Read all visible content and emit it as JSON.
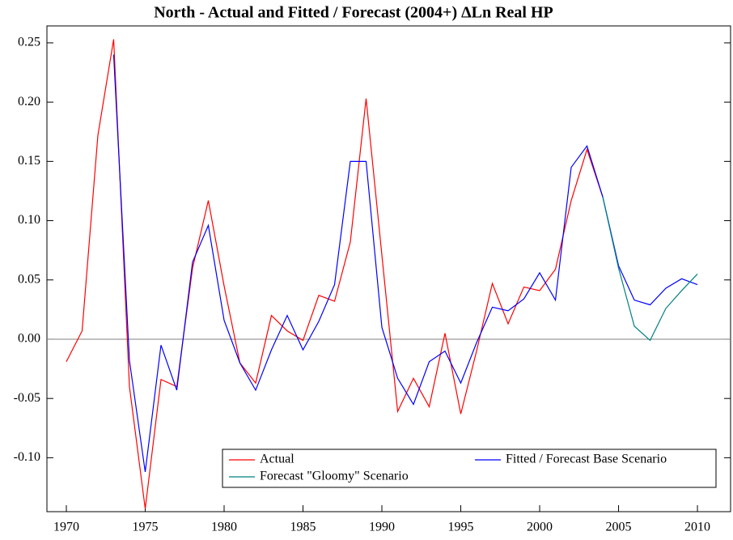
{
  "chart_data": {
    "type": "line",
    "title": "North - Actual and Fitted / Forecast (2004+) ΔLn Real HP",
    "x": [
      1970,
      1971,
      1972,
      1973,
      1974,
      1975,
      1976,
      1977,
      1978,
      1979,
      1980,
      1981,
      1982,
      1983,
      1984,
      1985,
      1986,
      1987,
      1988,
      1989,
      1990,
      1991,
      1992,
      1993,
      1994,
      1995,
      1996,
      1997,
      1998,
      1999,
      2000,
      2001,
      2002,
      2003,
      2004,
      2005,
      2006,
      2007,
      2008,
      2009,
      2010
    ],
    "series": [
      {
        "name": "Actual",
        "color": "#ff0000",
        "values": [
          -0.019,
          0.007,
          0.172,
          0.253,
          -0.04,
          -0.143,
          -0.034,
          -0.04,
          0.06,
          0.117,
          0.045,
          -0.02,
          -0.037,
          0.02,
          0.007,
          -0.001,
          0.037,
          0.032,
          0.082,
          0.203,
          0.071,
          -0.061,
          -0.033,
          -0.057,
          0.005,
          -0.063,
          -0.01,
          0.047,
          0.013,
          0.044,
          0.041,
          0.059,
          0.117,
          0.16,
          0.12,
          null,
          null,
          null,
          null,
          null,
          null
        ]
      },
      {
        "name": "Fitted / Forecast Base Scenario",
        "color": "#0000ff",
        "values": [
          null,
          null,
          null,
          0.24,
          -0.018,
          -0.112,
          -0.005,
          -0.043,
          0.065,
          0.096,
          0.016,
          -0.02,
          -0.043,
          -0.009,
          0.02,
          -0.009,
          0.015,
          0.046,
          0.15,
          0.15,
          0.01,
          -0.033,
          -0.055,
          -0.019,
          -0.01,
          -0.037,
          -0.003,
          0.027,
          0.024,
          0.034,
          0.056,
          0.033,
          0.145,
          0.163,
          0.12,
          0.062,
          0.033,
          0.029,
          0.043,
          0.051,
          0.046
        ]
      },
      {
        "name": "Forecast \"Gloomy\" Scenario",
        "color": "#008080",
        "values": [
          null,
          null,
          null,
          null,
          null,
          null,
          null,
          null,
          null,
          null,
          null,
          null,
          null,
          null,
          null,
          null,
          null,
          null,
          null,
          null,
          null,
          null,
          null,
          null,
          null,
          null,
          null,
          null,
          null,
          null,
          null,
          null,
          null,
          null,
          0.12,
          0.06,
          0.011,
          -0.001,
          0.026,
          0.041,
          0.055
        ]
      }
    ],
    "xlim": [
      1968.77,
      2012.1
    ],
    "ylim": [
      -0.1455,
      0.2643
    ],
    "xticks": [
      1970,
      1975,
      1980,
      1985,
      1990,
      1995,
      2000,
      2005,
      2010
    ],
    "yticks": [
      {
        "value": -0.1,
        "label": "-0.10"
      },
      {
        "value": -0.05,
        "label": "-0.05"
      },
      {
        "value": 0,
        "label": "0.00"
      },
      {
        "value": 0.05,
        "label": "0.05"
      },
      {
        "value": 0.1,
        "label": "0.10"
      },
      {
        "value": 0.15,
        "label": "0.15"
      },
      {
        "value": 0.2,
        "label": "0.20"
      },
      {
        "value": 0.25,
        "label": "0.25"
      }
    ],
    "zero_line": true,
    "legend": "bottom-right"
  }
}
